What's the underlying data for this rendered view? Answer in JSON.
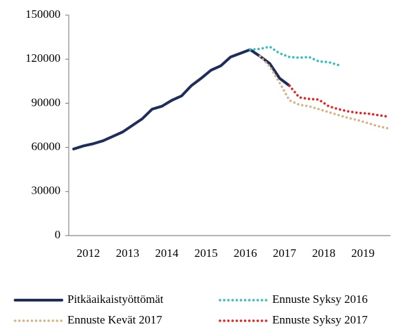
{
  "chart_data": {
    "type": "line",
    "ylim": [
      0,
      150000
    ],
    "yticks": [
      0,
      30000,
      60000,
      90000,
      120000,
      150000
    ],
    "xlim": [
      2012,
      2020.2
    ],
    "xticks": [
      {
        "value": 2012.5,
        "label": "2012"
      },
      {
        "value": 2013.5,
        "label": "2013"
      },
      {
        "value": 2014.5,
        "label": "2014"
      },
      {
        "value": 2015.5,
        "label": "2015"
      },
      {
        "value": 2016.5,
        "label": "2016"
      },
      {
        "value": 2017.5,
        "label": "2017"
      },
      {
        "value": 2018.5,
        "label": "2018"
      },
      {
        "value": 2019.5,
        "label": "2019"
      }
    ],
    "grid": false,
    "series": [
      {
        "name": "Pitkäaikaistyöttömät",
        "color": "#1f2d5c",
        "style": "solid",
        "x": [
          2012.125,
          2012.375,
          2012.625,
          2012.875,
          2013.125,
          2013.375,
          2013.625,
          2013.875,
          2014.125,
          2014.375,
          2014.625,
          2014.875,
          2015.125,
          2015.375,
          2015.625,
          2015.875,
          2016.125,
          2016.375,
          2016.625,
          2016.875,
          2017.125,
          2017.375,
          2017.625
        ],
        "values": [
          58900,
          61000,
          62500,
          64500,
          67500,
          70500,
          75000,
          79500,
          86000,
          88000,
          92000,
          95000,
          102000,
          107000,
          112500,
          115500,
          121500,
          124000,
          126500,
          122000,
          117000,
          107000,
          102000
        ]
      },
      {
        "name": "Ennuste Syksy 2016",
        "color": "#2ebfbf",
        "style": "dotted",
        "x": [
          2016.625,
          2016.875,
          2017.125,
          2017.375,
          2017.625,
          2017.875,
          2018.125,
          2018.375,
          2018.625,
          2018.875
        ],
        "values": [
          126500,
          127000,
          128500,
          124000,
          121500,
          121000,
          121500,
          118500,
          118000,
          116000
        ]
      },
      {
        "name": "Ennuste Kevät 2017",
        "color": "#d4b483",
        "style": "dotted",
        "x": [
          2016.875,
          2017.125,
          2017.375,
          2017.625,
          2017.875,
          2018.125,
          2018.375,
          2018.625,
          2018.875,
          2019.125,
          2019.375,
          2019.625,
          2019.875,
          2020.125
        ],
        "values": [
          122000,
          115000,
          104000,
          92000,
          89000,
          88000,
          86000,
          84000,
          82000,
          80000,
          78500,
          76500,
          74500,
          73000
        ]
      },
      {
        "name": "Ennuste Syksy 2017",
        "color": "#e8201e",
        "style": "dotted",
        "x": [
          2017.625,
          2017.875,
          2018.125,
          2018.375,
          2018.625,
          2018.875,
          2019.125,
          2019.375,
          2019.625,
          2019.875,
          2020.125
        ],
        "values": [
          102000,
          94000,
          93000,
          92500,
          88000,
          86000,
          84500,
          83500,
          83000,
          82000,
          81000
        ]
      }
    ]
  }
}
